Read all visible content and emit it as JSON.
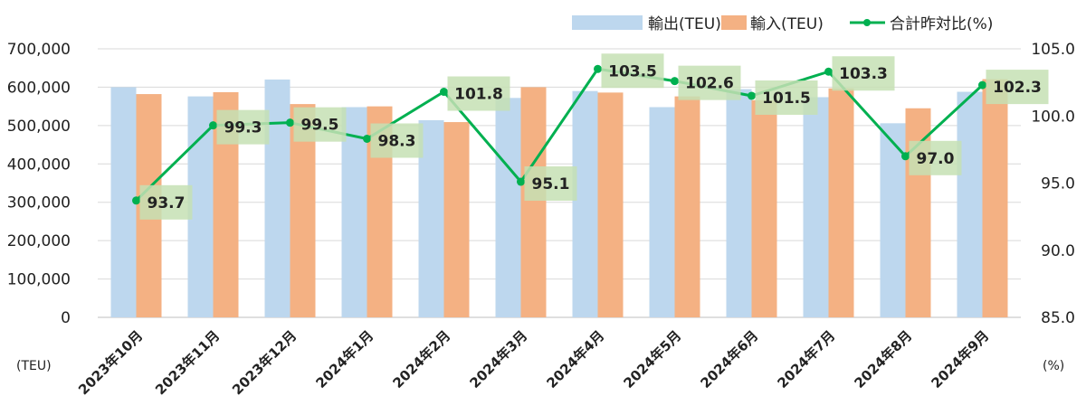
{
  "chart_data": {
    "type": "bar",
    "categories": [
      "2023年10月",
      "2023年11月",
      "2023年12月",
      "2024年1月",
      "2024年2月",
      "2024年3月",
      "2024年4月",
      "2024年5月",
      "2024年6月",
      "2024年7月",
      "2024年8月",
      "2024年9月"
    ],
    "series": [
      {
        "name": "輸出(TEU)",
        "type": "bar",
        "axis": "left",
        "color": "#bdd7ee",
        "values": [
          600000,
          576000,
          620000,
          548000,
          514000,
          572000,
          590000,
          548000,
          595000,
          574000,
          506000,
          588000
        ]
      },
      {
        "name": "輸入(TEU)",
        "type": "bar",
        "axis": "left",
        "color": "#f4b183",
        "values": [
          582000,
          587000,
          556000,
          550000,
          509000,
          600000,
          586000,
          576000,
          566000,
          597000,
          545000,
          621000
        ]
      },
      {
        "name": "合計昨対比(%)",
        "type": "line",
        "axis": "right",
        "color": "#00b050",
        "values": [
          93.7,
          99.3,
          99.5,
          98.3,
          101.8,
          95.1,
          103.5,
          102.6,
          101.5,
          103.3,
          97.0,
          102.3
        ],
        "labels": [
          "93.7",
          "99.3",
          "99.5",
          "98.3",
          "101.8",
          "95.1",
          "103.5",
          "102.6",
          "101.5",
          "103.3",
          "97.0",
          "102.3"
        ]
      }
    ],
    "y_left": {
      "min": 0,
      "max": 700000,
      "step": 100000,
      "tick_labels": [
        "0",
        "100,000",
        "200,000",
        "300,000",
        "400,000",
        "500,000",
        "600,000",
        "700,000"
      ],
      "unit": "(TEU)"
    },
    "y_right": {
      "min": 85,
      "max": 105,
      "step": 5,
      "tick_labels": [
        "85.0",
        "90.0",
        "95.0",
        "100.0",
        "105.0"
      ],
      "unit": "(%)"
    },
    "grid": true,
    "legend": "top-right",
    "label_box_color": "#c5e0b4"
  }
}
